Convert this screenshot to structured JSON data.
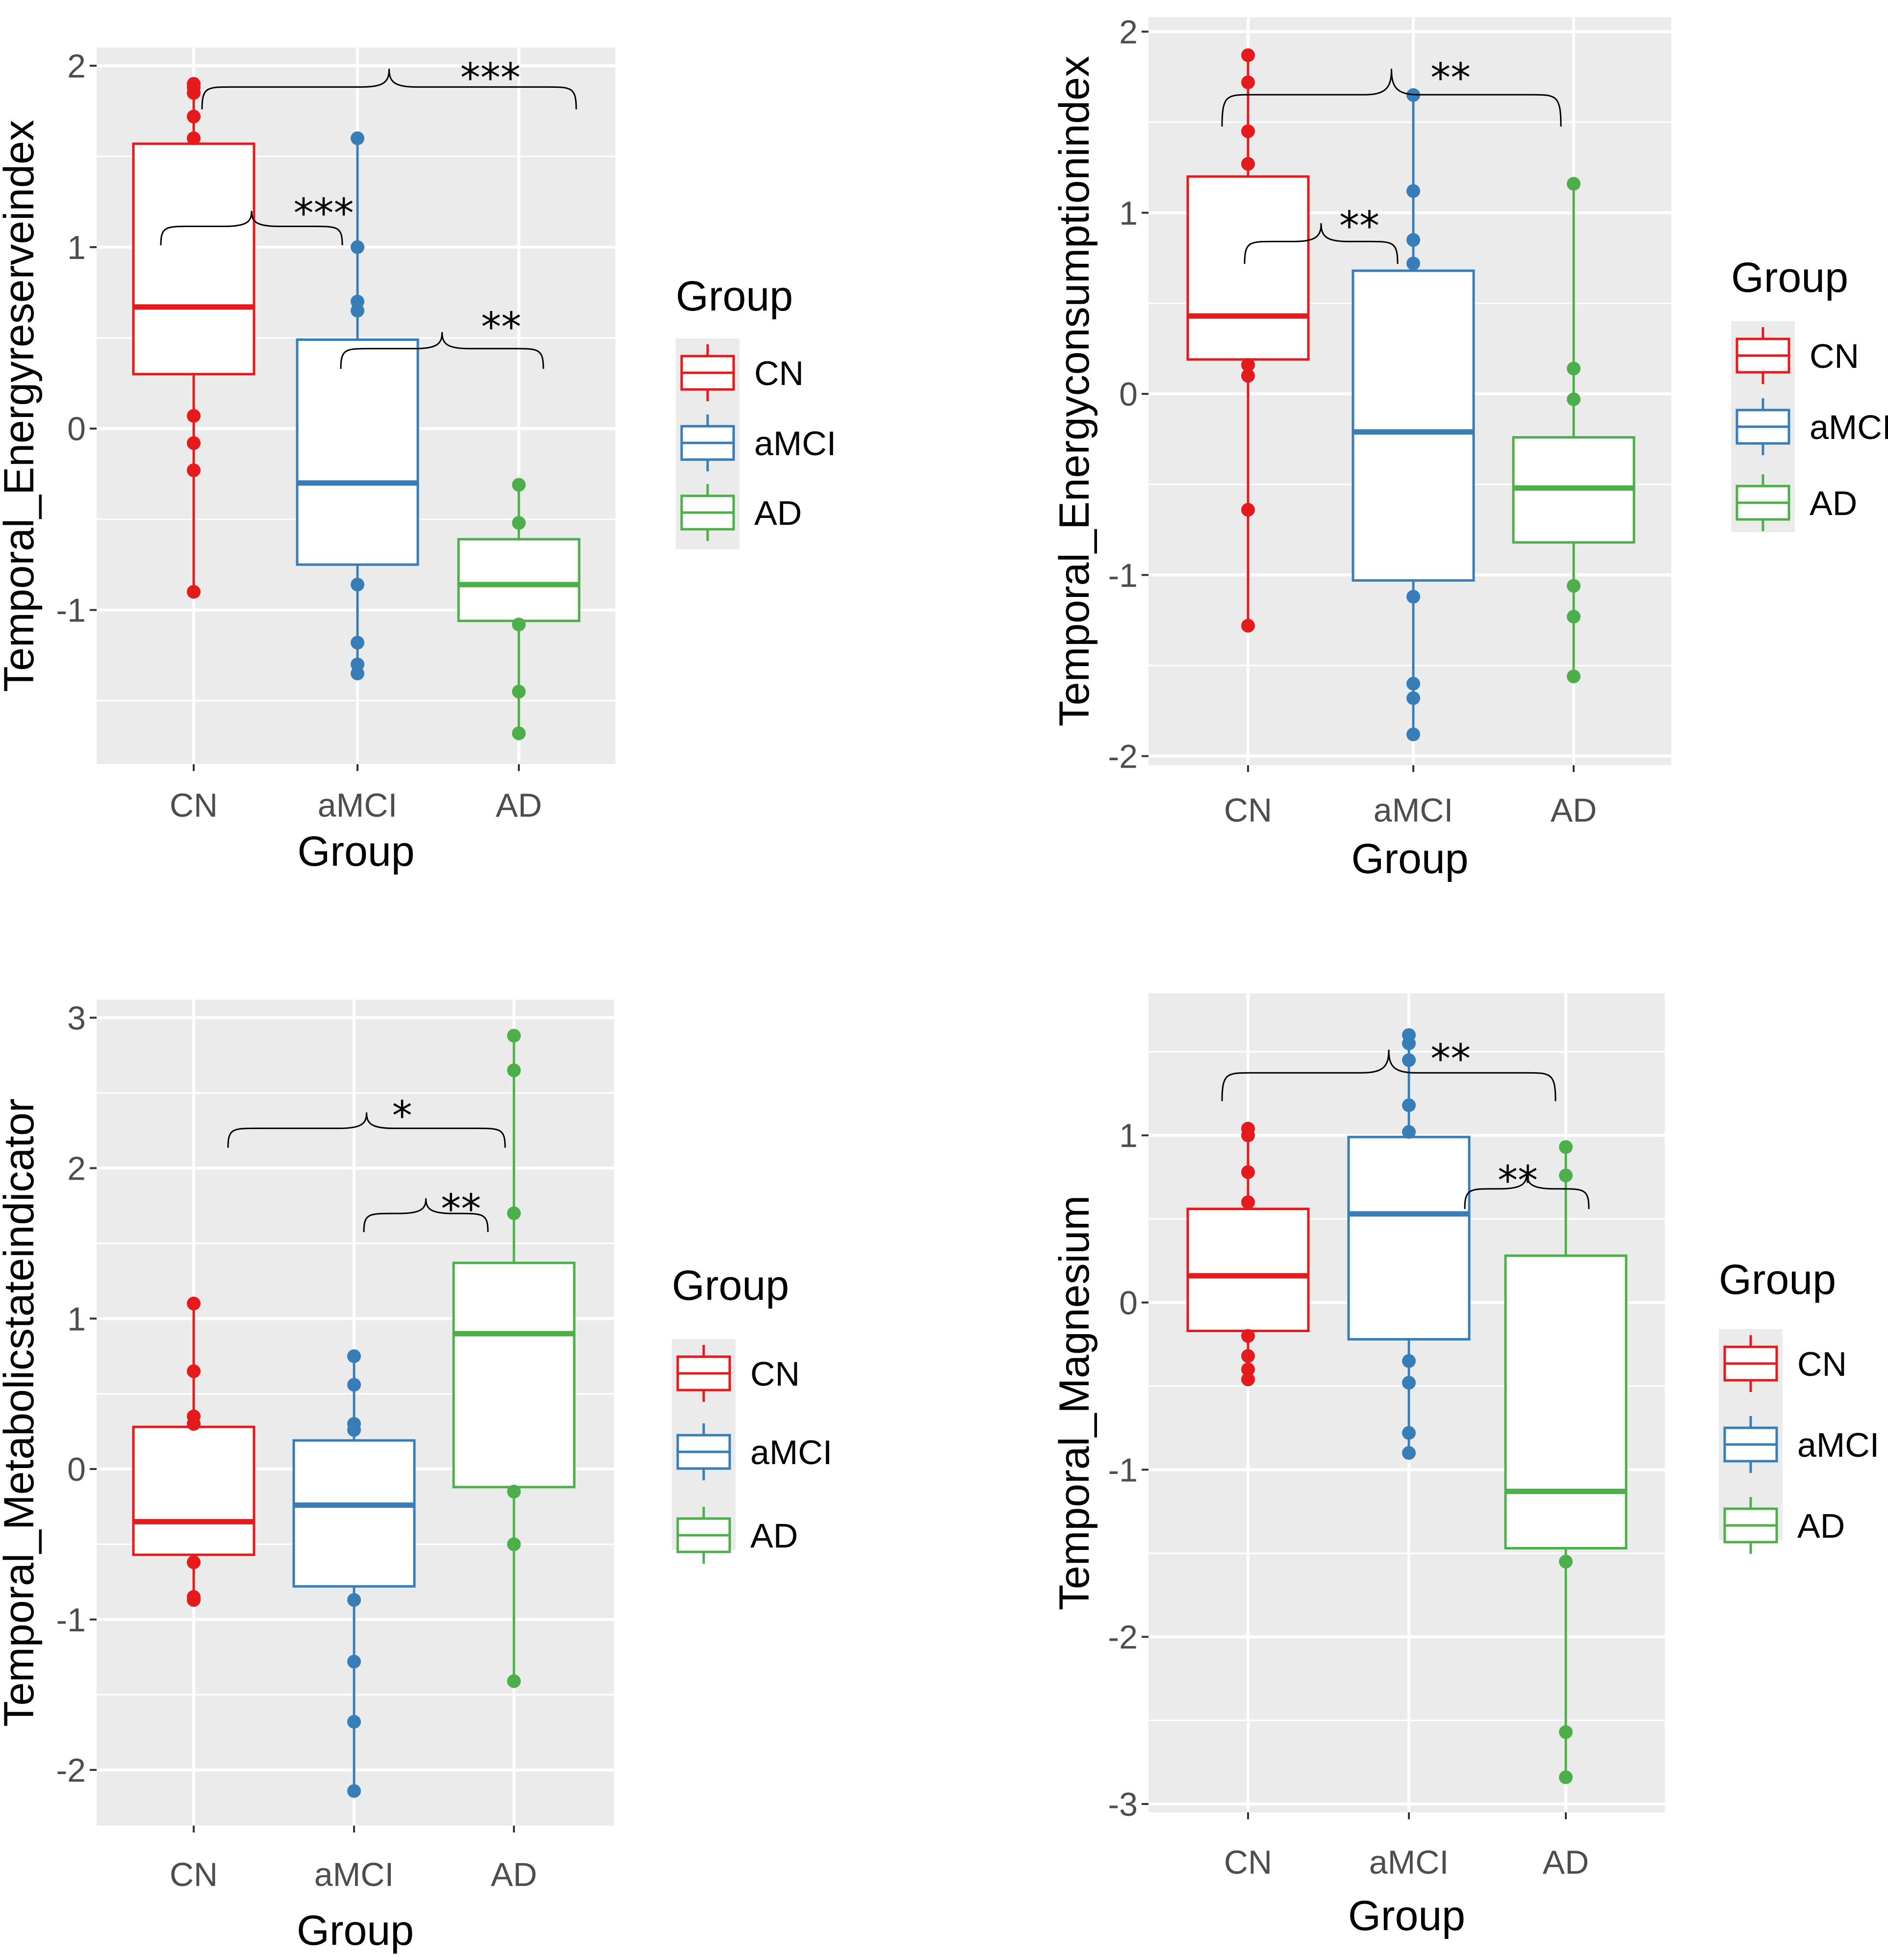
{
  "colors": {
    "CN": "#e41a1c",
    "aMCI": "#377eb8",
    "AD": "#4daf4a",
    "panel_bg": "#ebebeb",
    "grid": "#ffffff"
  },
  "chart_data": [
    {
      "type": "box",
      "id": "energy_reserve",
      "ylabel": "Temporal_Energyreserveindex",
      "xlabel": "Group",
      "categories": [
        "CN",
        "aMCI",
        "AD"
      ],
      "ylim": [
        -1.85,
        2.1
      ],
      "yticks": [
        -1,
        0,
        1,
        2
      ],
      "tick_labels": [
        "-1",
        "0",
        "1",
        "2"
      ],
      "legend": {
        "title": "Group",
        "labels": [
          "CN",
          "aMCI",
          "AD"
        ]
      },
      "boxes": [
        {
          "group": "CN",
          "low": -0.9,
          "q1": 0.3,
          "median": 0.67,
          "q3": 1.57,
          "high": 1.92,
          "points": [
            1.9,
            1.88,
            1.85,
            1.72,
            1.6,
            0.07,
            -0.08,
            -0.23,
            -0.9
          ]
        },
        {
          "group": "aMCI",
          "low": -1.35,
          "q1": -0.75,
          "median": -0.3,
          "q3": 0.49,
          "high": 1.6,
          "points": [
            1.6,
            1.0,
            0.7,
            0.65,
            -0.86,
            -1.18,
            -1.3,
            -1.35
          ]
        },
        {
          "group": "AD",
          "low": -1.68,
          "q1": -1.06,
          "median": -0.86,
          "q3": -0.61,
          "high": -0.31,
          "points": [
            -0.31,
            -0.52,
            -1.08,
            -1.45,
            -1.68
          ]
        }
      ],
      "annotations": [
        {
          "from": "CN",
          "to": "AD",
          "label": "***"
        },
        {
          "from": "CN",
          "to": "aMCI",
          "label": "***"
        },
        {
          "from": "aMCI",
          "to": "AD",
          "label": "**"
        }
      ]
    },
    {
      "type": "box",
      "id": "energy_consumption",
      "ylabel": "Temporal_Energyconsumptionindex",
      "xlabel": "Group",
      "categories": [
        "CN",
        "aMCI",
        "AD"
      ],
      "ylim": [
        -2.05,
        2.08
      ],
      "yticks": [
        -2,
        -1,
        0,
        1,
        2
      ],
      "tick_labels": [
        "-2",
        "-1",
        "0",
        "1",
        "2"
      ],
      "legend": {
        "title": "Group",
        "labels": [
          "CN",
          "aMCI",
          "AD"
        ]
      },
      "boxes": [
        {
          "group": "CN",
          "low": -1.28,
          "q1": 0.19,
          "median": 0.43,
          "q3": 1.2,
          "high": 1.87,
          "points": [
            1.87,
            1.72,
            1.45,
            1.27,
            0.16,
            0.1,
            -0.64,
            -1.28
          ]
        },
        {
          "group": "aMCI",
          "low": -1.88,
          "q1": -1.03,
          "median": -0.21,
          "q3": 0.68,
          "high": 1.65,
          "points": [
            1.65,
            1.12,
            0.85,
            0.72,
            -1.12,
            -1.6,
            -1.68,
            -1.88
          ]
        },
        {
          "group": "AD",
          "low": -1.56,
          "q1": -0.82,
          "median": -0.52,
          "q3": -0.24,
          "high": 1.16,
          "points": [
            1.16,
            0.14,
            -0.03,
            -1.06,
            -1.23,
            -1.56
          ]
        }
      ],
      "annotations": [
        {
          "from": "CN",
          "to": "AD",
          "label": "**"
        },
        {
          "from": "CN",
          "to": "aMCI",
          "label": "**"
        }
      ]
    },
    {
      "type": "box",
      "id": "metabolic_state",
      "ylabel": "Temporal_Metabolicstateindicator",
      "xlabel": "Group",
      "categories": [
        "CN",
        "aMCI",
        "AD"
      ],
      "ylim": [
        -2.37,
        3.12
      ],
      "yticks": [
        -2,
        -1,
        0,
        1,
        2,
        3
      ],
      "tick_labels": [
        "-2",
        "-1",
        "0",
        "1",
        "2",
        "3"
      ],
      "legend": {
        "title": "Group",
        "labels": [
          "CN",
          "aMCI",
          "AD"
        ]
      },
      "boxes": [
        {
          "group": "CN",
          "low": -0.87,
          "q1": -0.57,
          "median": -0.35,
          "q3": 0.28,
          "high": 1.1,
          "points": [
            1.1,
            0.65,
            0.35,
            0.3,
            -0.62,
            -0.85,
            -0.87
          ]
        },
        {
          "group": "aMCI",
          "low": -2.14,
          "q1": -0.78,
          "median": -0.24,
          "q3": 0.19,
          "high": 0.75,
          "points": [
            0.75,
            0.56,
            0.3,
            0.26,
            -0.87,
            -1.28,
            -1.68,
            -2.14
          ]
        },
        {
          "group": "AD",
          "low": -1.41,
          "q1": -0.12,
          "median": 0.9,
          "q3": 1.37,
          "high": 2.88,
          "points": [
            2.88,
            2.65,
            1.7,
            -0.15,
            -0.5,
            -1.41
          ]
        }
      ],
      "annotations": [
        {
          "from": "CN",
          "to": "AD",
          "label": "*"
        },
        {
          "from": "aMCI",
          "to": "AD",
          "label": "**"
        }
      ]
    },
    {
      "type": "box",
      "id": "magnesium",
      "ylabel": "Temporal_Magnesium",
      "xlabel": "Group",
      "categories": [
        "CN",
        "aMCI",
        "AD"
      ],
      "ylim": [
        -3.05,
        1.85
      ],
      "yticks": [
        -3,
        -2,
        -1,
        0,
        1
      ],
      "tick_labels": [
        "-3",
        "-2",
        "-1",
        "0",
        "1"
      ],
      "legend": {
        "title": "Group",
        "labels": [
          "CN",
          "aMCI",
          "AD"
        ]
      },
      "boxes": [
        {
          "group": "CN",
          "low": -0.46,
          "q1": -0.17,
          "median": 0.16,
          "q3": 0.56,
          "high": 1.04,
          "points": [
            1.04,
            1.0,
            0.78,
            0.6,
            -0.2,
            -0.32,
            -0.4,
            -0.46
          ]
        },
        {
          "group": "aMCI",
          "low": -0.9,
          "q1": -0.22,
          "median": 0.53,
          "q3": 0.99,
          "high": 1.6,
          "points": [
            1.6,
            1.55,
            1.45,
            1.18,
            1.02,
            -0.35,
            -0.48,
            -0.78,
            -0.9
          ]
        },
        {
          "group": "AD",
          "low": -2.84,
          "q1": -1.47,
          "median": -1.13,
          "q3": 0.28,
          "high": 0.93,
          "points": [
            0.93,
            0.76,
            -1.55,
            -2.57,
            -2.84
          ]
        }
      ],
      "annotations": [
        {
          "from": "CN",
          "to": "AD",
          "label": "**"
        },
        {
          "from": "aMCI",
          "to": "AD",
          "label": "**"
        }
      ]
    }
  ]
}
